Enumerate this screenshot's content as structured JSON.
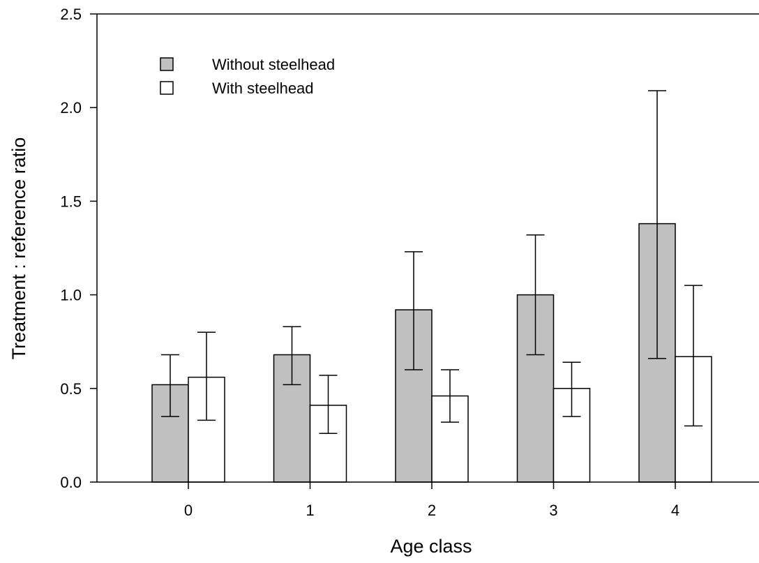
{
  "chart_data": {
    "type": "bar",
    "categories": [
      "0",
      "1",
      "2",
      "3",
      "4"
    ],
    "xlabel": "Age class",
    "ylabel": "Treatment : reference ratio",
    "ylim": [
      0,
      2.5
    ],
    "yticks": [
      "0.0",
      "0.5",
      "1.0",
      "1.5",
      "2.0",
      "2.5"
    ],
    "grid": false,
    "legend_position": "top-left",
    "series": [
      {
        "name": "Without steelhead",
        "color": "#c0c0c0",
        "values": [
          0.52,
          0.68,
          0.92,
          1.0,
          1.38
        ],
        "error_low": [
          0.35,
          0.52,
          0.6,
          0.68,
          0.66
        ],
        "error_high": [
          0.68,
          0.83,
          1.23,
          1.32,
          2.09
        ]
      },
      {
        "name": "With steelhead",
        "color": "#ffffff",
        "values": [
          0.56,
          0.41,
          0.46,
          0.5,
          0.67
        ],
        "error_low": [
          0.33,
          0.26,
          0.32,
          0.35,
          0.3
        ],
        "error_high": [
          0.8,
          0.57,
          0.6,
          0.64,
          1.05
        ]
      }
    ]
  }
}
